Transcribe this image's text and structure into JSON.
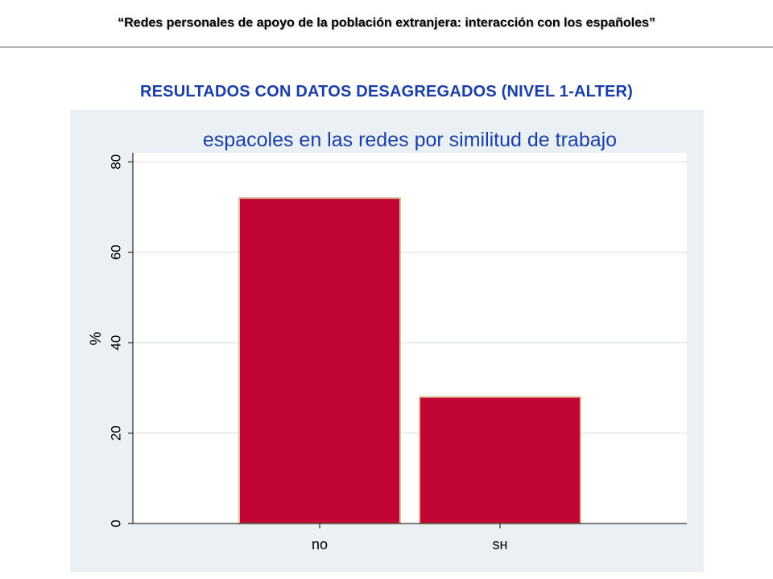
{
  "slide": {
    "header": "“Redes personales de apoyo de la población extranjera: interacción con los españoles”",
    "section_title": "RESULTADOS CON DATOS DESAGREGADOS (NIVEL 1-ALTER)"
  },
  "colors": {
    "plot_background": "#eaf0f3",
    "inner_background": "#ffffff",
    "bar_fill": "#c10534",
    "bar_outline": "#d9c28f",
    "gridline": "#e8edf0",
    "axis": "#000000",
    "title": "#1a3fa8"
  },
  "chart_data": {
    "type": "bar",
    "title": "espacoles en las redes por similitud de trabajo",
    "xlabel": "",
    "ylabel": "%",
    "categories": [
      "no",
      "sн"
    ],
    "values": [
      72,
      28
    ],
    "ylim": [
      0,
      82
    ],
    "yticks": [
      0,
      20,
      40,
      60,
      80
    ],
    "grid": true,
    "legend": "none"
  }
}
